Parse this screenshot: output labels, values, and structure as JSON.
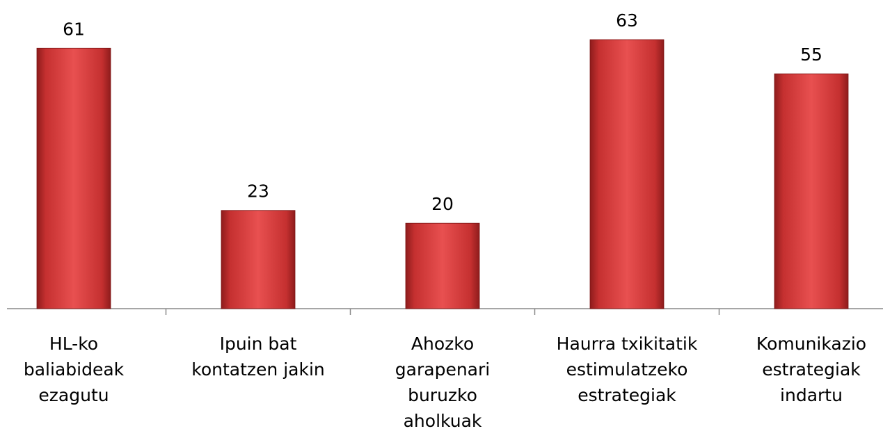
{
  "chart_data": {
    "type": "bar",
    "categories": [
      [
        "HL-ko",
        "baliabideak",
        "ezagutu"
      ],
      [
        "Ipuin bat",
        "kontatzen jakin"
      ],
      [
        "Ahozko",
        "garapenari",
        "buruzko",
        "aholkuak"
      ],
      [
        "Haurra txikitatik",
        "estimulatzeko",
        "estrategiak"
      ],
      [
        "Komunikazio",
        "estrategiak",
        "indartu"
      ]
    ],
    "values": [
      61,
      23,
      20,
      63,
      55
    ],
    "color": "#d63c3c"
  }
}
